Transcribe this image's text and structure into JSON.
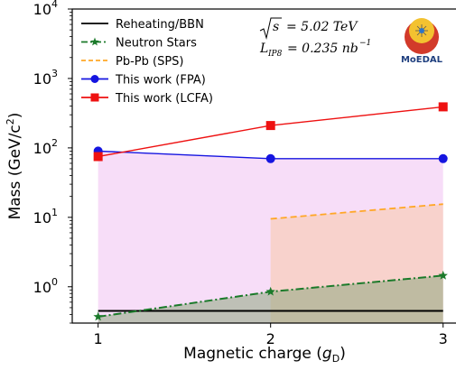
{
  "chart_data": {
    "type": "line",
    "xlabel": "Magnetic charge (g_D)",
    "xlabel_parts": {
      "main": "Magnetic charge (",
      "sym": "g",
      "sub": "D",
      "close": ")"
    },
    "ylabel": "Mass (GeV/c²)",
    "ylabel_parts": {
      "main": "Mass (GeV/c",
      "sup": "2",
      "close": ")"
    },
    "yscale": "log",
    "xlim": [
      0.85,
      3.08
    ],
    "ylim": [
      0.3,
      10000
    ],
    "x_ticks": [
      1,
      2,
      3
    ],
    "y_ticks": [
      {
        "value": 1,
        "base": "10",
        "exp": "0"
      },
      {
        "value": 10,
        "base": "10",
        "exp": "1"
      },
      {
        "value": 100,
        "base": "10",
        "exp": "2"
      },
      {
        "value": 1000,
        "base": "10",
        "exp": "3"
      },
      {
        "value": 10000,
        "base": "10",
        "exp": "4"
      }
    ],
    "legend_position": "top-left",
    "series": [
      {
        "name": "Reheating/BBN",
        "x": [
          1,
          2,
          3
        ],
        "y": [
          0.45,
          0.45,
          0.45
        ],
        "color": "#000000",
        "style": "solid",
        "marker": "none"
      },
      {
        "name": "Neutron Stars",
        "x": [
          1,
          2,
          3
        ],
        "y": [
          0.37,
          0.85,
          1.45
        ],
        "color": "#1b7a2a",
        "style": "dashdot",
        "marker": "star"
      },
      {
        "name": "Pb-Pb (SPS)",
        "x": [
          2,
          3
        ],
        "y": [
          9.5,
          15.5
        ],
        "color": "#ffa726",
        "style": "dashed",
        "marker": "none"
      },
      {
        "name": "This work (FPA)",
        "x": [
          1,
          2,
          3
        ],
        "y": [
          90,
          70,
          70
        ],
        "color": "#1515e0",
        "style": "solid",
        "marker": "circle"
      },
      {
        "name": "This work (LCFA)",
        "x": [
          1,
          2,
          3
        ],
        "y": [
          75,
          210,
          390
        ],
        "color": "#ee1111",
        "style": "solid",
        "marker": "square"
      }
    ],
    "annotations": {
      "energy": {
        "lhs": "s",
        "rhs": "= 5.02 TeV"
      },
      "luminosity": {
        "sym": "L",
        "sub": "IP8",
        "rhs": "= 0.235 nb",
        "sup": "−1"
      }
    },
    "logo_text": "MoEDAL"
  }
}
